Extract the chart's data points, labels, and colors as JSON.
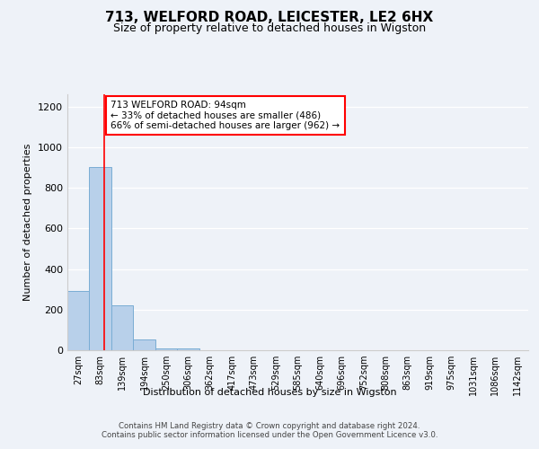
{
  "title": "713, WELFORD ROAD, LEICESTER, LE2 6HX",
  "subtitle": "Size of property relative to detached houses in Wigston",
  "xlabel": "Distribution of detached houses by size in Wigston",
  "ylabel": "Number of detached properties",
  "bin_labels": [
    "27sqm",
    "83sqm",
    "139sqm",
    "194sqm",
    "250sqm",
    "306sqm",
    "362sqm",
    "417sqm",
    "473sqm",
    "529sqm",
    "585sqm",
    "640sqm",
    "696sqm",
    "752sqm",
    "808sqm",
    "863sqm",
    "919sqm",
    "975sqm",
    "1031sqm",
    "1086sqm",
    "1142sqm"
  ],
  "bar_heights": [
    290,
    900,
    220,
    55,
    10,
    10,
    0,
    0,
    0,
    0,
    0,
    0,
    0,
    0,
    0,
    0,
    0,
    0,
    0,
    0,
    0
  ],
  "bar_color": "#b8d0ea",
  "bar_edgecolor": "#7aadd4",
  "ylim": [
    0,
    1260
  ],
  "yticks": [
    0,
    200,
    400,
    600,
    800,
    1000,
    1200
  ],
  "red_line_x": 1.18,
  "annotation_text": "713 WELFORD ROAD: 94sqm\n← 33% of detached houses are smaller (486)\n66% of semi-detached houses are larger (962) →",
  "annotation_box_color": "red",
  "annotation_box_fill": "white",
  "footer_text": "Contains HM Land Registry data © Crown copyright and database right 2024.\nContains public sector information licensed under the Open Government Licence v3.0.",
  "background_color": "#eef2f8",
  "plot_background": "#eef2f8",
  "grid_color": "#ffffff",
  "title_fontsize": 11,
  "subtitle_fontsize": 9,
  "ylabel_fontsize": 8,
  "xlabel_fontsize": 8,
  "tick_fontsize": 7,
  "annot_fontsize": 7.5
}
